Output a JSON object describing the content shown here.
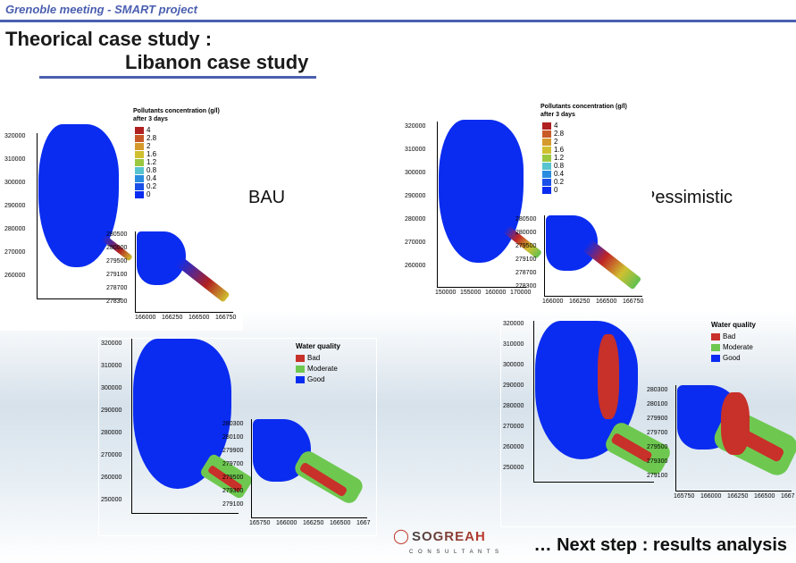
{
  "header": {
    "text": "Grenoble meeting  - SMART project"
  },
  "title": {
    "line1": "Theorical case study :",
    "line2": "Libanon case study"
  },
  "labels": {
    "bau": "BAU",
    "pessimistic": "Pessimistic"
  },
  "footer": {
    "next_step": "… Next step : results analysis",
    "logo_brand": "SOGREAH",
    "logo_sub": "C O N S U L T A N T S"
  },
  "pollutant_panel": {
    "title_l1": "Pollutants concentration (g/l)",
    "title_l2": "after 3 days",
    "legend_values": [
      "4",
      "2.8",
      "2",
      "1.6",
      "1.2",
      "0.8",
      "0.4",
      "0.2",
      "0"
    ],
    "legend_colors": [
      "#b02020",
      "#c85a28",
      "#d69a2c",
      "#d0c030",
      "#9cc840",
      "#58c4d0",
      "#2a8ce0",
      "#1a50e8",
      "#0a2cf0"
    ],
    "y_ticks": [
      "320000",
      "310000",
      "300000",
      "290000",
      "280000",
      "270000",
      "260000"
    ],
    "x_ticks": [
      "150000",
      "155000",
      "160000",
      "170000"
    ],
    "inset_y": [
      "280500",
      "280000",
      "279500",
      "279100",
      "278700",
      "278300"
    ],
    "inset_x": [
      "166000",
      "166250",
      "166500",
      "166750"
    ]
  },
  "water_quality_panel": {
    "title": "Water quality",
    "classes": [
      "Bad",
      "Moderate",
      "Good"
    ],
    "class_colors": [
      "#c8302a",
      "#6ec850",
      "#0a2cf0"
    ],
    "y_ticks": [
      "320000",
      "310000",
      "300000",
      "290000",
      "280000",
      "270000",
      "260000",
      "250000"
    ],
    "inset_y": [
      "280300",
      "280100",
      "279900",
      "279700",
      "279500",
      "279300",
      "279100"
    ],
    "inset_x": [
      "165750",
      "166000",
      "166250",
      "166500",
      "1667"
    ]
  }
}
